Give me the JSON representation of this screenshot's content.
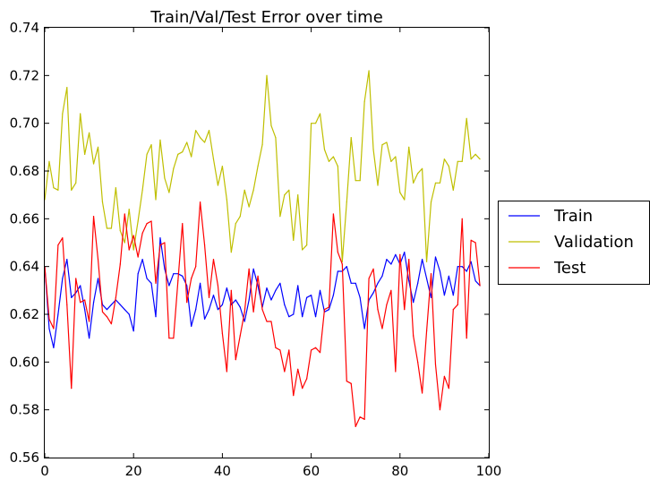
{
  "chart_data": {
    "type": "line",
    "title": "Train/Val/Test Error over time",
    "xlabel": "",
    "ylabel": "",
    "xlim": [
      0,
      100
    ],
    "ylim": [
      0.56,
      0.74
    ],
    "xticks": [
      0,
      20,
      40,
      60,
      80,
      100
    ],
    "yticks": [
      0.56,
      0.58,
      0.6,
      0.62,
      0.64,
      0.66,
      0.68,
      0.7,
      0.72,
      0.74
    ],
    "xtick_labels": [
      "0",
      "20",
      "40",
      "60",
      "80",
      "100"
    ],
    "ytick_labels": [
      "0.56",
      "0.58",
      "0.60",
      "0.62",
      "0.64",
      "0.66",
      "0.68",
      "0.70",
      "0.72",
      "0.74"
    ],
    "grid": false,
    "legend_position": "outside-right",
    "series": [
      {
        "name": "Train",
        "color": "#0000ff",
        "values": [
          0.64,
          0.614,
          0.606,
          0.62,
          0.635,
          0.643,
          0.627,
          0.629,
          0.632,
          0.622,
          0.61,
          0.625,
          0.635,
          0.624,
          0.622,
          0.624,
          0.626,
          0.624,
          0.622,
          0.62,
          0.613,
          0.637,
          0.643,
          0.635,
          0.633,
          0.619,
          0.652,
          0.639,
          0.632,
          0.637,
          0.637,
          0.636,
          0.632,
          0.615,
          0.622,
          0.633,
          0.618,
          0.622,
          0.628,
          0.622,
          0.624,
          0.631,
          0.624,
          0.626,
          0.623,
          0.617,
          0.626,
          0.639,
          0.632,
          0.623,
          0.631,
          0.626,
          0.63,
          0.633,
          0.624,
          0.619,
          0.62,
          0.632,
          0.619,
          0.627,
          0.628,
          0.619,
          0.63,
          0.621,
          0.622,
          0.628,
          0.638,
          0.638,
          0.64,
          0.633,
          0.633,
          0.627,
          0.614,
          0.626,
          0.629,
          0.633,
          0.636,
          0.643,
          0.641,
          0.645,
          0.641,
          0.646,
          0.634,
          0.625,
          0.633,
          0.643,
          0.635,
          0.627,
          0.644,
          0.638,
          0.628,
          0.636,
          0.628,
          0.64,
          0.64,
          0.638,
          0.642,
          0.634,
          0.632
        ]
      },
      {
        "name": "Validation",
        "color": "#bfbf00",
        "values": [
          0.668,
          0.684,
          0.673,
          0.672,
          0.704,
          0.715,
          0.672,
          0.675,
          0.704,
          0.687,
          0.696,
          0.683,
          0.69,
          0.667,
          0.656,
          0.656,
          0.673,
          0.655,
          0.65,
          0.664,
          0.647,
          0.659,
          0.672,
          0.687,
          0.691,
          0.668,
          0.693,
          0.677,
          0.671,
          0.681,
          0.687,
          0.688,
          0.692,
          0.686,
          0.697,
          0.694,
          0.692,
          0.697,
          0.685,
          0.674,
          0.682,
          0.668,
          0.646,
          0.658,
          0.661,
          0.672,
          0.665,
          0.672,
          0.682,
          0.691,
          0.72,
          0.699,
          0.694,
          0.661,
          0.67,
          0.672,
          0.651,
          0.67,
          0.647,
          0.649,
          0.7,
          0.7,
          0.704,
          0.689,
          0.684,
          0.686,
          0.682,
          0.642,
          0.667,
          0.694,
          0.676,
          0.676,
          0.709,
          0.722,
          0.689,
          0.674,
          0.691,
          0.692,
          0.684,
          0.686,
          0.671,
          0.668,
          0.69,
          0.675,
          0.679,
          0.681,
          0.642,
          0.667,
          0.675,
          0.675,
          0.685,
          0.682,
          0.672,
          0.684,
          0.684,
          0.702,
          0.685,
          0.687,
          0.685
        ]
      },
      {
        "name": "Test",
        "color": "#ff0000",
        "values": [
          0.64,
          0.618,
          0.614,
          0.649,
          0.652,
          0.624,
          0.589,
          0.635,
          0.625,
          0.626,
          0.617,
          0.661,
          0.643,
          0.621,
          0.619,
          0.616,
          0.627,
          0.641,
          0.662,
          0.647,
          0.653,
          0.644,
          0.654,
          0.658,
          0.659,
          0.633,
          0.649,
          0.65,
          0.61,
          0.61,
          0.634,
          0.658,
          0.625,
          0.635,
          0.64,
          0.667,
          0.649,
          0.627,
          0.643,
          0.632,
          0.612,
          0.596,
          0.63,
          0.601,
          0.611,
          0.621,
          0.639,
          0.621,
          0.636,
          0.622,
          0.617,
          0.617,
          0.606,
          0.605,
          0.596,
          0.605,
          0.586,
          0.597,
          0.589,
          0.593,
          0.605,
          0.606,
          0.604,
          0.622,
          0.623,
          0.662,
          0.646,
          0.641,
          0.592,
          0.591,
          0.573,
          0.577,
          0.576,
          0.635,
          0.639,
          0.622,
          0.614,
          0.624,
          0.63,
          0.596,
          0.645,
          0.622,
          0.643,
          0.611,
          0.6,
          0.587,
          0.613,
          0.637,
          0.599,
          0.58,
          0.594,
          0.589,
          0.622,
          0.624,
          0.66,
          0.61,
          0.651,
          0.65,
          0.632
        ]
      }
    ]
  }
}
